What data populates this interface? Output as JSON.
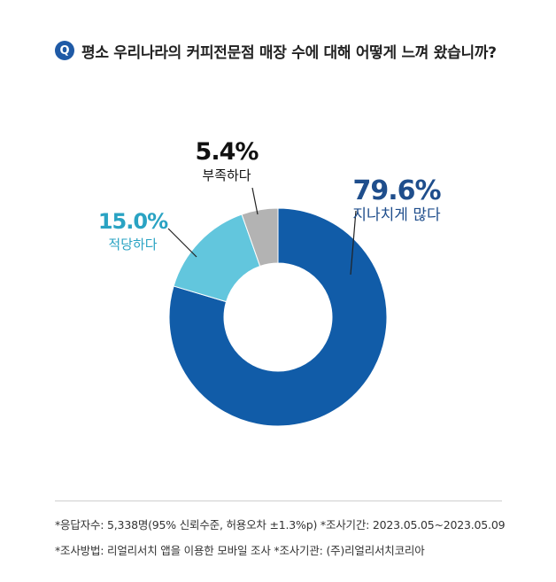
{
  "question": {
    "badge": "Q",
    "text": "평소 우리나라의 커피전문점 매장 수에 대해 어떻게 느껴 왔습니까?"
  },
  "chart_data": {
    "type": "pie",
    "title": "평소 우리나라의 커피전문점 매장 수에 대해 어떻게 느껴 왔습니까?",
    "slices": [
      {
        "label": "지나치게 많다",
        "value": 79.6,
        "display": "79.6%",
        "color": "#115ca8",
        "label_color": "#1f4e8c"
      },
      {
        "label": "적당하다",
        "value": 15.0,
        "display": "15.0%",
        "color": "#62c6dd",
        "label_color": "#2aa3c3"
      },
      {
        "label": "부족하다",
        "value": 5.4,
        "display": "5.4%",
        "color": "#b3b3b3",
        "label_color": "#111111"
      }
    ]
  },
  "footnotes": {
    "line1": "*응답자수: 5,338명(95% 신뢰수준, 허용오차 ±1.3%p)  *조사기간: 2023.05.05~2023.05.09",
    "line2": "*조사방법: 리얼리서치 앱을 이용한 모바일 조사  *조사기관: (주)리얼리서치코리아"
  }
}
